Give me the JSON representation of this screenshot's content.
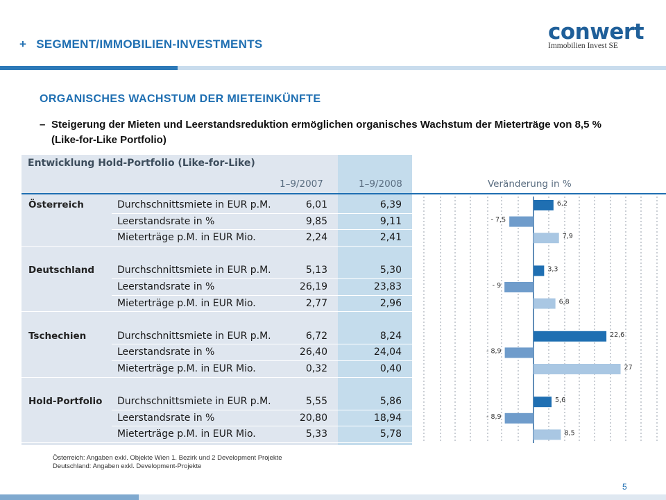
{
  "header": {
    "plus": "+",
    "title": "SEGMENT/IMMOBILIEN-INVESTMENTS"
  },
  "logo": {
    "word": "conwert",
    "sub": "Immobilien Invest SE"
  },
  "subtitle": "ORGANISCHES WACHSTUM DER MIETEINKÜNFTE",
  "bullet": {
    "dash": "–",
    "text": "Steigerung der Mieten und Leerstandsreduktion ermöglichen organisches Wachstum der Mieterträge von 8,5 % (Like-for-Like Portfolio)"
  },
  "table": {
    "title": "Entwicklung Hold-Portfolio (Like-for-Like)",
    "col_2007": "1–9/2007",
    "col_2008": "1–9/2008",
    "col_change": "Veränderung in %",
    "groups": [
      {
        "country": "Österreich",
        "rows": [
          {
            "metric": "Durchschnittsmiete in EUR p.M.",
            "v2007": "6,01",
            "v2008": "6,39",
            "change_label": "6,2"
          },
          {
            "metric": "Leerstandsrate in %",
            "v2007": "9,85",
            "v2008": "9,11",
            "change_label": "- 7,5"
          },
          {
            "metric": "Mieterträge p.M. in EUR Mio.",
            "v2007": "2,24",
            "v2008": "2,41",
            "change_label": "7,9"
          }
        ]
      },
      {
        "country": "Deutschland",
        "rows": [
          {
            "metric": "Durchschnittsmiete in EUR p.M.",
            "v2007": "5,13",
            "v2008": "5,30",
            "change_label": "3,3"
          },
          {
            "metric": "Leerstandsrate in %",
            "v2007": "26,19",
            "v2008": "23,83",
            "change_label": "- 9"
          },
          {
            "metric": "Mieterträge p.M. in EUR Mio.",
            "v2007": "2,77",
            "v2008": "2,96",
            "change_label": "6,8"
          }
        ]
      },
      {
        "country": "Tschechien",
        "rows": [
          {
            "metric": "Durchschnittsmiete in EUR p.M.",
            "v2007": "6,72",
            "v2008": "8,24",
            "change_label": "22,6"
          },
          {
            "metric": "Leerstandsrate in %",
            "v2007": "26,40",
            "v2008": "24,04",
            "change_label": "- 8,9"
          },
          {
            "metric": "Mieterträge p.M. in EUR Mio.",
            "v2007": "0,32",
            "v2008": "0,40",
            "change_label": "27"
          }
        ]
      },
      {
        "country": "Hold-Portfolio",
        "rows": [
          {
            "metric": "Durchschnittsmiete in EUR p.M.",
            "v2007": "5,55",
            "v2008": "5,86",
            "change_label": "5,6"
          },
          {
            "metric": "Leerstandsrate in %",
            "v2007": "20,80",
            "v2008": "18,94",
            "change_label": "- 8,9"
          },
          {
            "metric": "Mieterträge p.M. in EUR Mio.",
            "v2007": "5,33",
            "v2008": "5,78",
            "change_label": "8,5"
          }
        ]
      }
    ]
  },
  "chart_data": {
    "type": "bar",
    "orientation": "horizontal",
    "categories": [
      "Österreich Durchschnittsmiete",
      "Österreich Leerstandsrate",
      "Österreich Mieterträge",
      "Deutschland Durchschnittsmiete",
      "Deutschland Leerstandsrate",
      "Deutschland Mieterträge",
      "Tschechien Durchschnittsmiete",
      "Tschechien Leerstandsrate",
      "Tschechien Mieterträge",
      "Hold-Portfolio Durchschnittsmiete",
      "Hold-Portfolio Leerstandsrate",
      "Hold-Portfolio Mieterträge"
    ],
    "values": [
      6.2,
      -7.5,
      7.9,
      3.3,
      -9,
      6.8,
      22.6,
      -8.9,
      27,
      5.6,
      -8.9,
      8.5
    ],
    "xlabel": "Veränderung in %",
    "grid": true,
    "colors": {
      "miete": "#1f6fb2",
      "leerstand": "#6f9ccb",
      "ertraege": "#a9c7e3"
    }
  },
  "footnotes": [
    "Österreich: Angaben exkl. Objekte Wien 1. Bezirk und  2 Development Projekte",
    "Deutschland: Angaben exkl. Development-Projekte"
  ],
  "page_number": "5"
}
